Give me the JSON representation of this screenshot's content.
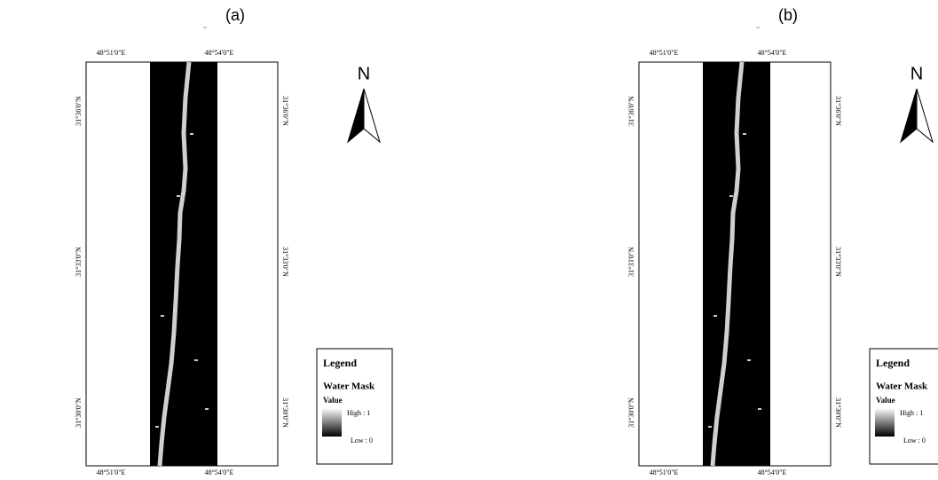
{
  "panels": [
    {
      "label": "(a)",
      "top_labels": [
        "48°51'0\"E",
        "48°54'0\"E"
      ],
      "bottom_labels": [
        "48°51'0\"E",
        "48°54'0\"E"
      ],
      "left_labels": [
        "31°36'0\"N",
        "31°33'0\"N",
        "31°30'0\"N"
      ],
      "right_labels": [
        "31°36'0\"N",
        "31°33'0\"N",
        "31°30'0\"N"
      ],
      "north": "N",
      "legend": {
        "title": "Legend",
        "layer": "Water Mask",
        "field": "Value",
        "high": "High : 1",
        "low": "Low : 0"
      }
    },
    {
      "label": "(b)",
      "top_labels": [
        "48°51'0\"E",
        "48°54'0\"E"
      ],
      "bottom_labels": [
        "48°51'0\"E",
        "48°54'0\"E"
      ],
      "left_labels": [
        "31°36'0\"N",
        "31°33'0\"N",
        "31°30'0\"N"
      ],
      "right_labels": [
        "31°36'0\"N",
        "31°33'0\"N",
        "31°30'0\"N"
      ],
      "north": "N",
      "legend": {
        "title": "Legend",
        "layer": "Water Mask",
        "field": "Value",
        "high": "High : 1",
        "low": "Low : 0"
      }
    }
  ]
}
